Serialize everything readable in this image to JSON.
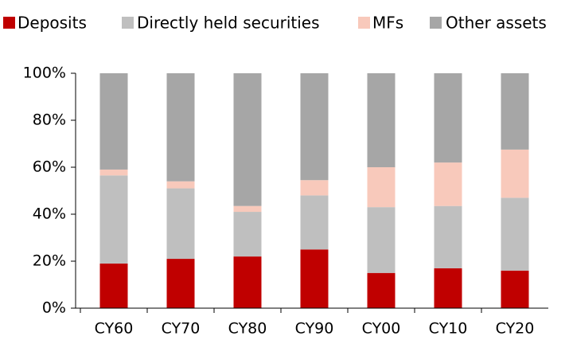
{
  "chart_data": {
    "type": "stacked_bar",
    "categories": [
      "CY60",
      "CY70",
      "CY80",
      "CY90",
      "CY00",
      "CY10",
      "CY20"
    ],
    "series": [
      {
        "name": "Deposits",
        "color": "#c00000",
        "values": [
          19,
          21,
          22,
          25,
          15,
          17,
          16
        ]
      },
      {
        "name": "Directly held securities",
        "color": "#bfbfbf",
        "values": [
          37.5,
          30,
          19,
          23,
          28,
          26.5,
          31
        ]
      },
      {
        "name": "MFs",
        "color": "#f8c9bb",
        "values": [
          2.5,
          3,
          2.5,
          6.5,
          17,
          18.5,
          20.5
        ]
      },
      {
        "name": "Other assets",
        "color": "#a6a6a6",
        "values": [
          41,
          46,
          56.5,
          45.5,
          40,
          38,
          32.5
        ]
      }
    ],
    "ylim": [
      0,
      100
    ],
    "yticks": [
      {
        "value": 0,
        "label": "0%"
      },
      {
        "value": 20,
        "label": "20%"
      },
      {
        "value": 40,
        "label": "40%"
      },
      {
        "value": 60,
        "label": "60%"
      },
      {
        "value": 80,
        "label": "80%"
      },
      {
        "value": 100,
        "label": "100%"
      }
    ],
    "legend": "top"
  }
}
